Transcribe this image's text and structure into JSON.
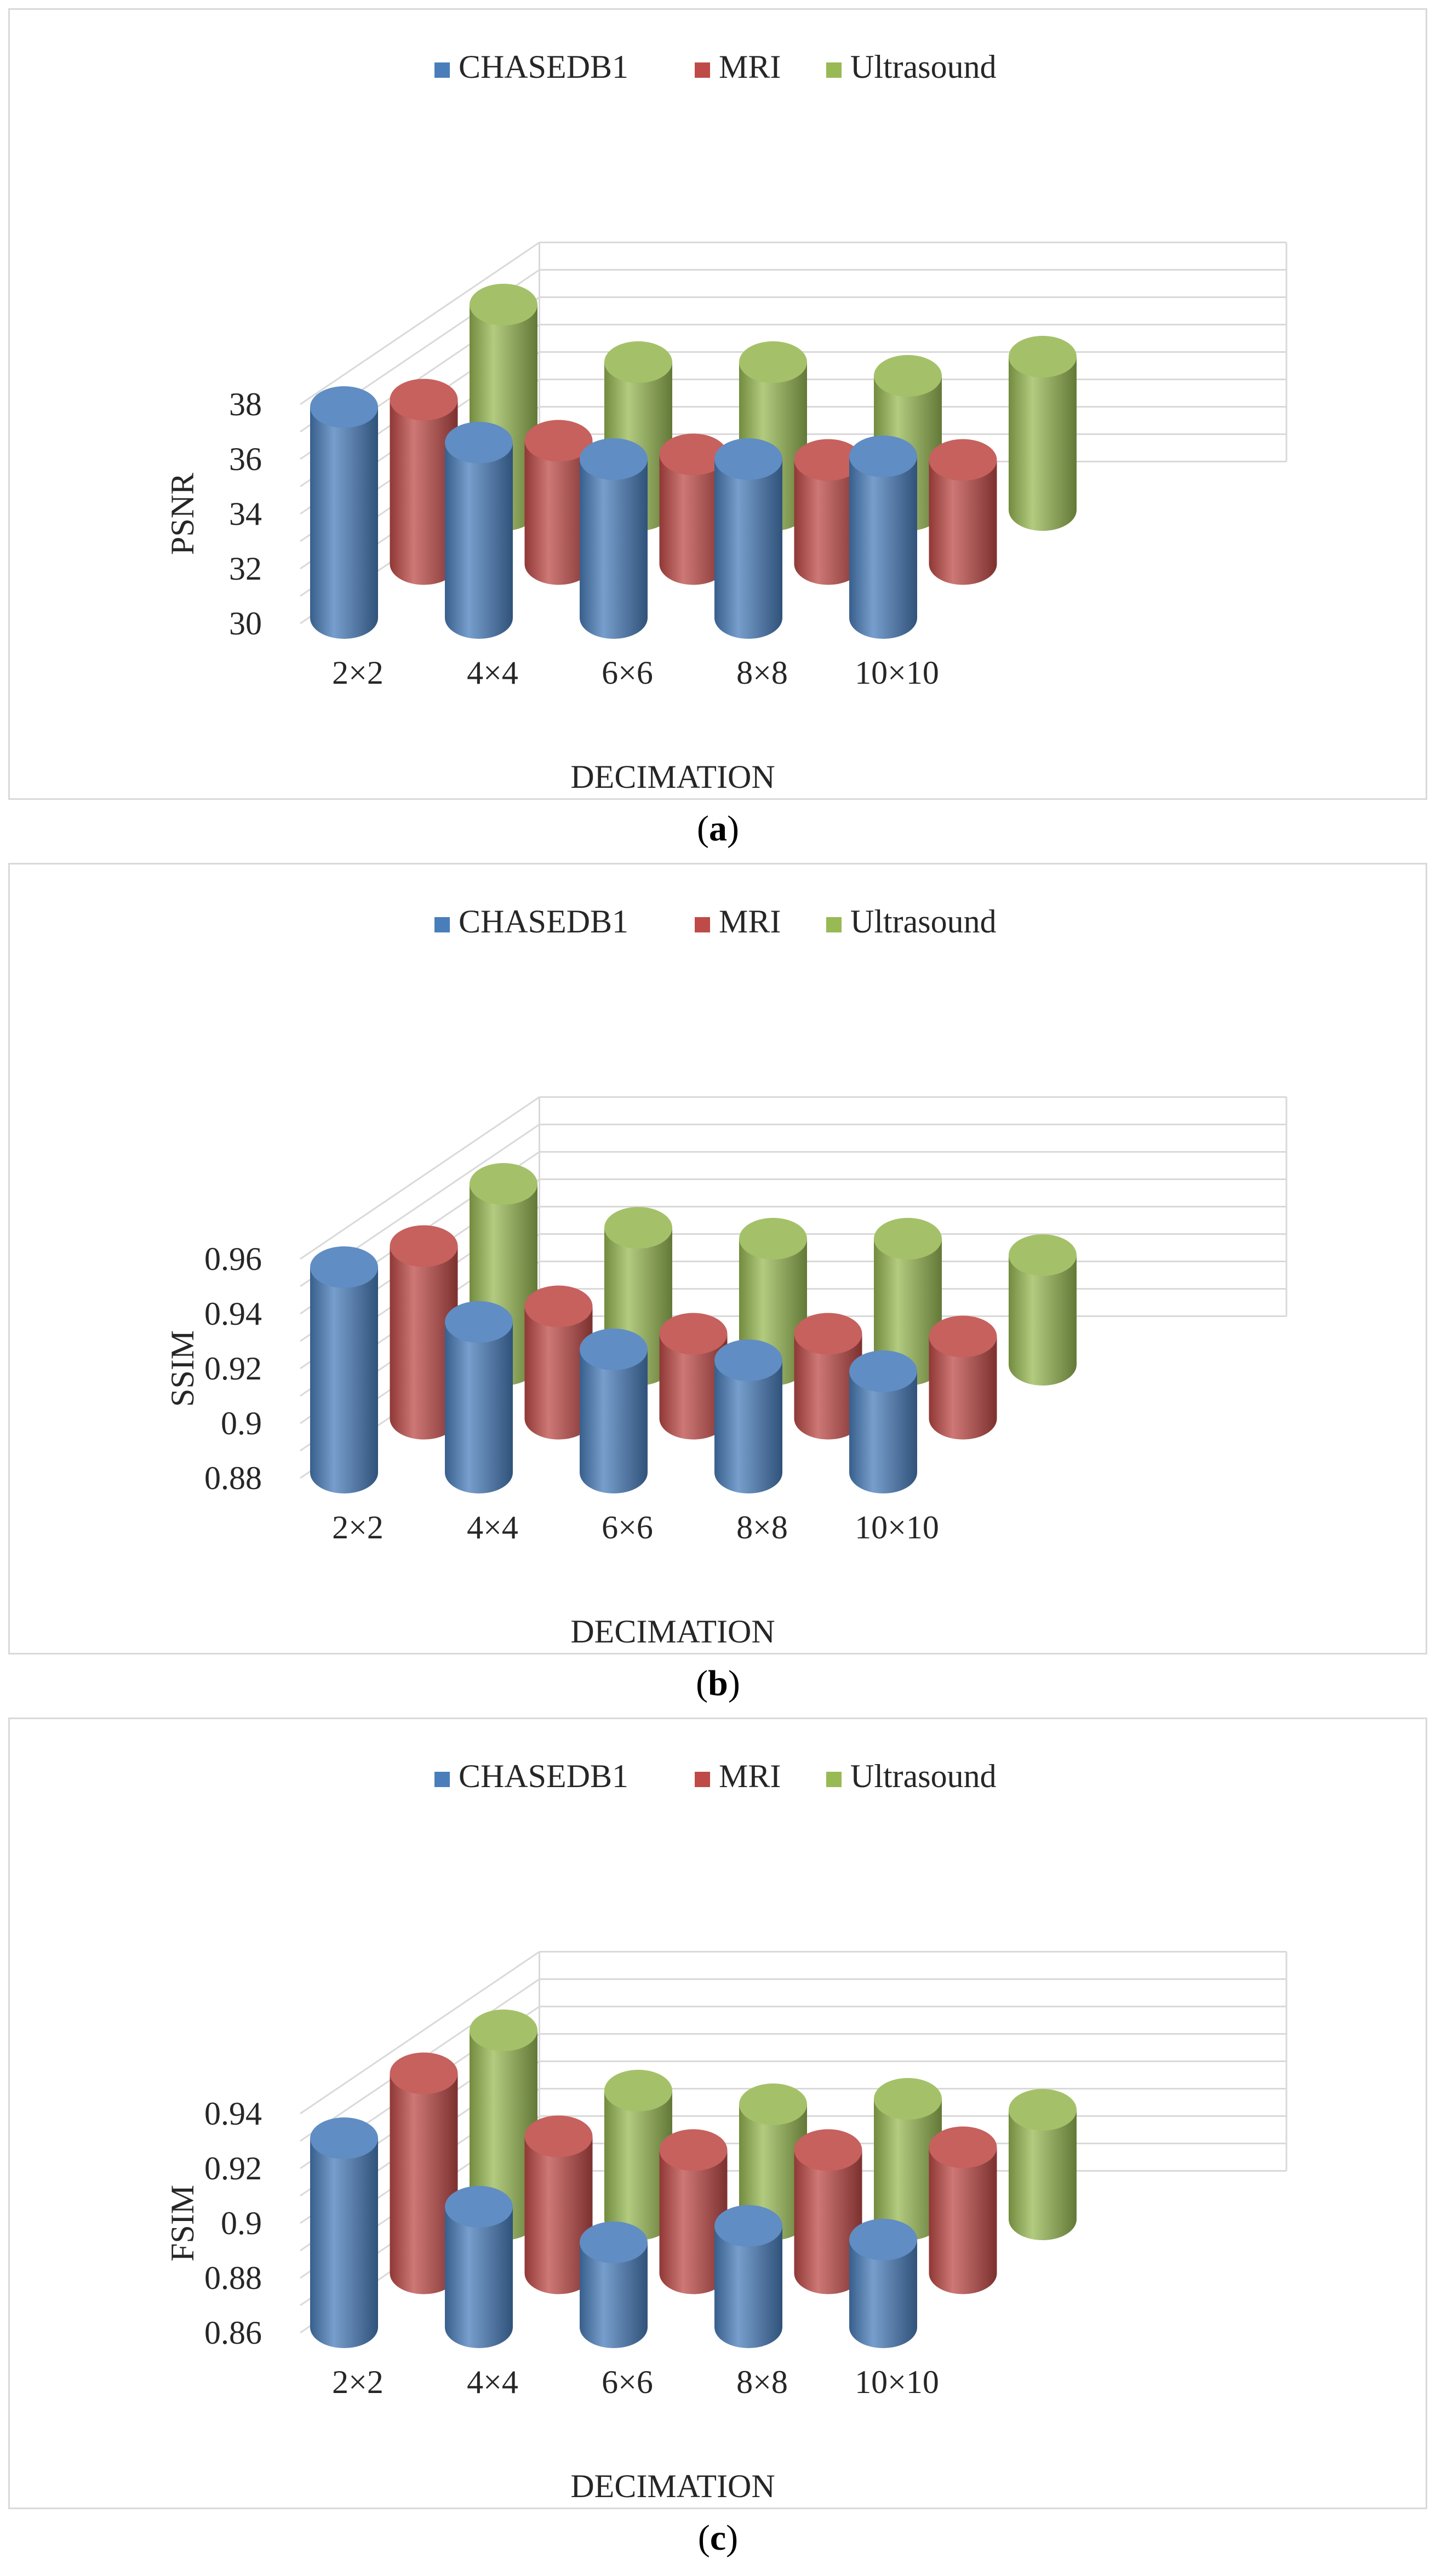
{
  "colors": {
    "CHASEDB1": "#4a7ebb",
    "MRI": "#be4b48",
    "Ultrasound": "#98b954",
    "grid": "#d9d9d9",
    "axis": "#595959"
  },
  "charts": [
    {
      "caption_letter": "a",
      "chart_data": {
        "type": "bar",
        "categories": [
          "2×2",
          "4×4",
          "6×6",
          "8×8",
          "10×10"
        ],
        "xlabel": "DECIMATION",
        "ylabel": "PSNR",
        "ylim": [
          30,
          38
        ],
        "yticks": [
          "38",
          "36",
          "34",
          "32",
          "30"
        ],
        "series": [
          {
            "name": "CHASEDB1",
            "values": [
              37.7,
              36.4,
              35.8,
              35.8,
              35.9
            ]
          },
          {
            "name": "MRI",
            "values": [
              36.0,
              34.5,
              34.0,
              33.8,
              33.8
            ]
          },
          {
            "name": "Ultrasound",
            "values": [
              37.5,
              35.4,
              35.4,
              34.9,
              35.6
            ]
          }
        ]
      }
    },
    {
      "caption_letter": "b",
      "chart_data": {
        "type": "bar",
        "categories": [
          "2×2",
          "4×4",
          "6×6",
          "8×8",
          "10×10"
        ],
        "xlabel": "DECIMATION",
        "ylabel": "SSIM",
        "ylim": [
          0.88,
          0.96
        ],
        "yticks": [
          "0.96",
          "0.94",
          "0.92",
          "0.9",
          "0.88"
        ],
        "series": [
          {
            "name": "CHASEDB1",
            "values": [
              0.955,
              0.935,
              0.925,
              0.921,
              0.917
            ]
          },
          {
            "name": "MRI",
            "values": [
              0.943,
              0.921,
              0.911,
              0.911,
              0.91
            ]
          },
          {
            "name": "Ultrasound",
            "values": [
              0.946,
              0.93,
              0.926,
              0.926,
              0.92
            ]
          }
        ]
      }
    },
    {
      "caption_letter": "c",
      "chart_data": {
        "type": "bar",
        "categories": [
          "2×2",
          "4×4",
          "6×6",
          "8×8",
          "10×10"
        ],
        "xlabel": "DECIMATION",
        "ylabel": "FSIM",
        "ylim": [
          0.86,
          0.94
        ],
        "yticks": [
          "0.94",
          "0.92",
          "0.9",
          "0.88",
          "0.86"
        ],
        "series": [
          {
            "name": "CHASEDB1",
            "values": [
              0.929,
              0.904,
              0.891,
              0.897,
              0.892
            ]
          },
          {
            "name": "MRI",
            "values": [
              0.933,
              0.91,
              0.905,
              0.905,
              0.906
            ]
          },
          {
            "name": "Ultrasound",
            "values": [
              0.929,
              0.907,
              0.902,
              0.904,
              0.9
            ]
          }
        ]
      }
    }
  ]
}
